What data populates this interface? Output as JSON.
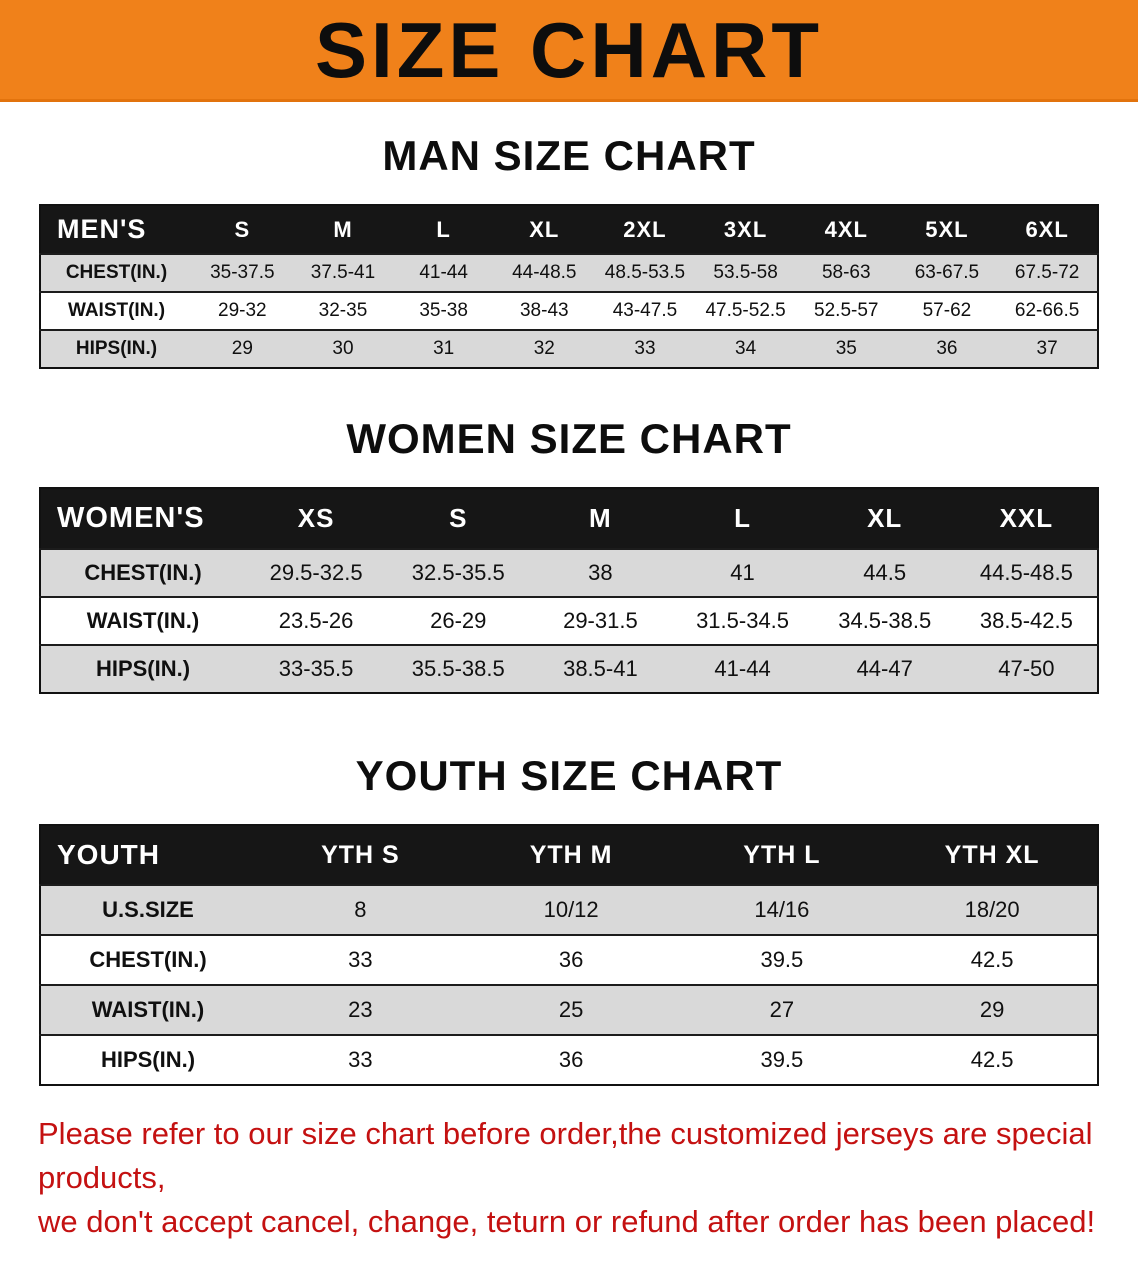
{
  "banner": {
    "title": "SIZE CHART"
  },
  "colors": {
    "banner_bg": "#f0811a",
    "table_header_bg": "#161616",
    "row_alt_gray": "#d9d9d9",
    "disclaimer_red": "#c41111"
  },
  "sections": {
    "men": {
      "heading": "MAN SIZE CHART",
      "table": {
        "header": [
          "MEN'S",
          "S",
          "M",
          "L",
          "XL",
          "2XL",
          "3XL",
          "4XL",
          "5XL",
          "6XL"
        ],
        "rows": [
          [
            "CHEST(IN.)",
            "35-37.5",
            "37.5-41",
            "41-44",
            "44-48.5",
            "48.5-53.5",
            "53.5-58",
            "58-63",
            "63-67.5",
            "67.5-72"
          ],
          [
            "WAIST(IN.)",
            "29-32",
            "32-35",
            "35-38",
            "38-43",
            "43-47.5",
            "47.5-52.5",
            "52.5-57",
            "57-62",
            "62-66.5"
          ],
          [
            "HIPS(IN.)",
            "29",
            "30",
            "31",
            "32",
            "33",
            "34",
            "35",
            "36",
            "37"
          ]
        ]
      }
    },
    "women": {
      "heading": "WOMEN SIZE CHART",
      "table": {
        "header": [
          "WOMEN'S",
          "XS",
          "S",
          "M",
          "L",
          "XL",
          "XXL"
        ],
        "rows": [
          [
            "CHEST(IN.)",
            "29.5-32.5",
            "32.5-35.5",
            "38",
            "41",
            "44.5",
            "44.5-48.5"
          ],
          [
            "WAIST(IN.)",
            "23.5-26",
            "26-29",
            "29-31.5",
            "31.5-34.5",
            "34.5-38.5",
            "38.5-42.5"
          ],
          [
            "HIPS(IN.)",
            "33-35.5",
            "35.5-38.5",
            "38.5-41",
            "41-44",
            "44-47",
            "47-50"
          ]
        ]
      }
    },
    "youth": {
      "heading": "YOUTH SIZE CHART",
      "table": {
        "header": [
          "YOUTH",
          "YTH S",
          "YTH M",
          "YTH L",
          "YTH XL"
        ],
        "rows": [
          [
            "U.S.SIZE",
            "8",
            "10/12",
            "14/16",
            "18/20"
          ],
          [
            "CHEST(IN.)",
            "33",
            "36",
            "39.5",
            "42.5"
          ],
          [
            "WAIST(IN.)",
            "23",
            "25",
            "27",
            "29"
          ],
          [
            "HIPS(IN.)",
            "33",
            "36",
            "39.5",
            "42.5"
          ]
        ]
      }
    }
  },
  "disclaimer": {
    "lines": [
      "Please refer to our size chart before order,the customized jerseys are special products,",
      "we don't accept cancel, change, teturn or refund after order has been placed!"
    ]
  }
}
